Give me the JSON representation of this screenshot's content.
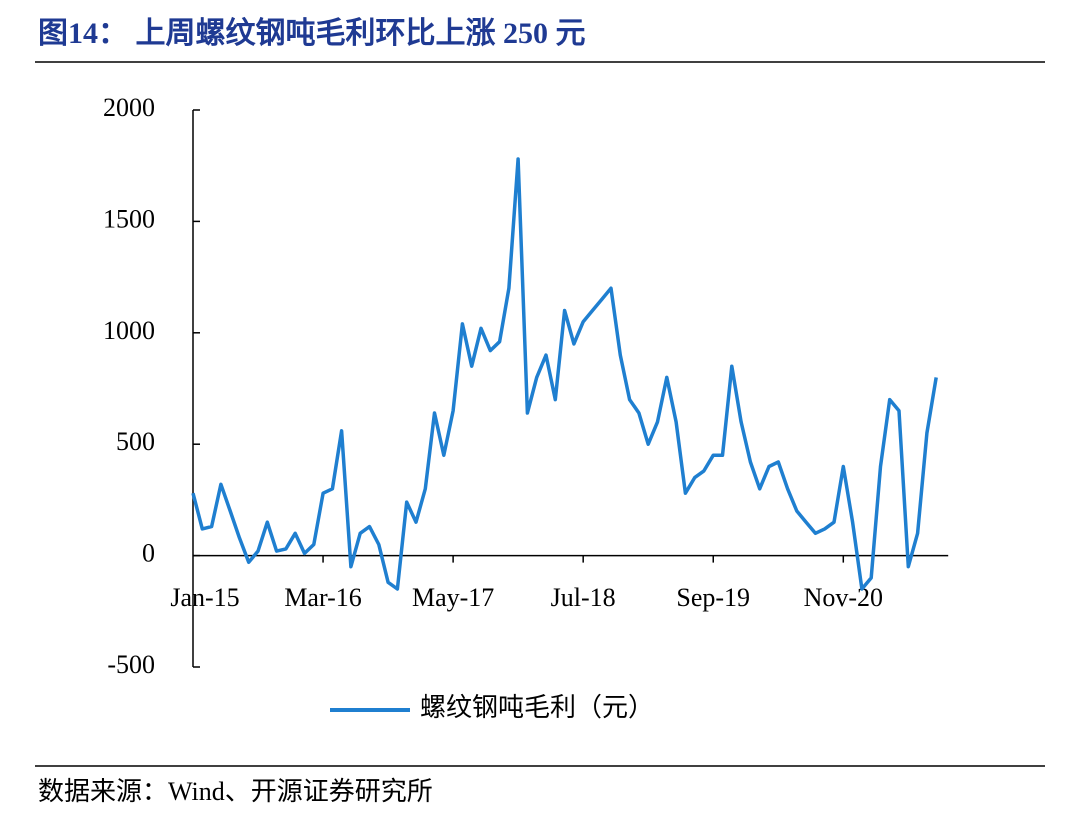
{
  "chart_data": {
    "type": "line",
    "title": "图14：  上周螺纹钢吨毛利环比上涨 250 元",
    "source": "数据来源：Wind、开源证券研究所",
    "categories": [
      "Jan-15",
      null,
      null,
      null,
      null,
      null,
      null,
      null,
      null,
      null,
      null,
      null,
      null,
      null,
      "Mar-16",
      null,
      null,
      null,
      null,
      null,
      null,
      null,
      null,
      null,
      null,
      null,
      null,
      null,
      "May-17",
      null,
      null,
      null,
      null,
      null,
      null,
      null,
      null,
      null,
      null,
      null,
      null,
      null,
      "Jul-18",
      null,
      null,
      null,
      null,
      null,
      null,
      null,
      null,
      null,
      null,
      null,
      null,
      null,
      "Sep-19",
      null,
      null,
      null,
      null,
      null,
      null,
      null,
      null,
      null,
      null,
      null,
      null,
      null,
      "Nov-20",
      null,
      null,
      null,
      null,
      null,
      null,
      null,
      null,
      null,
      null
    ],
    "series": [
      {
        "name": "螺纹钢吨毛利（元）",
        "color": "#1f7fd0",
        "values": [
          280,
          120,
          130,
          320,
          200,
          80,
          -30,
          20,
          150,
          20,
          30,
          100,
          10,
          50,
          280,
          300,
          560,
          -50,
          100,
          130,
          50,
          -120,
          -150,
          240,
          150,
          300,
          640,
          450,
          650,
          1040,
          850,
          1020,
          920,
          960,
          1200,
          1780,
          640,
          800,
          900,
          700,
          1100,
          950,
          1050,
          1100,
          1150,
          1200,
          900,
          700,
          640,
          500,
          600,
          800,
          600,
          280,
          350,
          380,
          450,
          450,
          850,
          600,
          420,
          300,
          400,
          420,
          300,
          200,
          150,
          100,
          120,
          150,
          400,
          150,
          -150,
          -100,
          400,
          700,
          650,
          -50,
          100,
          550,
          800
        ]
      }
    ],
    "ylim": [
      -500,
      2000
    ],
    "yticks": [
      -500,
      0,
      500,
      1000,
      1500,
      2000
    ]
  }
}
